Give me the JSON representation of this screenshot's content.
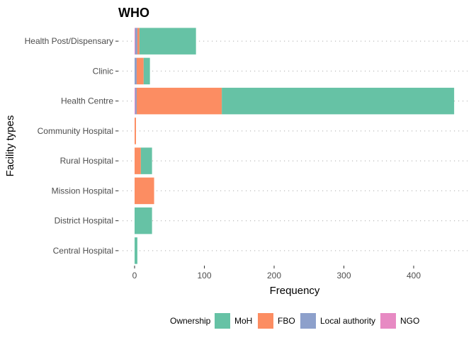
{
  "chart_data": {
    "type": "bar",
    "orientation": "horizontal",
    "stacked": true,
    "title": "WHO",
    "xlabel": "Frequency",
    "ylabel": "Facility types",
    "xlim": [
      0,
      460
    ],
    "xticks": [
      0,
      100,
      200,
      300,
      400
    ],
    "categories": [
      "Health Post/Dispensary",
      "Clinic",
      "Health Centre",
      "Community Hospital",
      "Rural Hospital",
      "Mission Hospital",
      "District Hospital",
      "Central Hospital"
    ],
    "series": [
      {
        "name": "NGO",
        "color": "#E78AC3",
        "values": [
          1,
          0,
          1,
          0,
          0,
          0,
          0,
          0
        ]
      },
      {
        "name": "Local authority",
        "color": "#8DA0CB",
        "values": [
          3,
          3,
          2,
          0,
          0,
          0,
          0,
          0
        ]
      },
      {
        "name": "FBO",
        "color": "#FC8D62",
        "values": [
          3,
          10,
          122,
          2,
          9,
          28,
          0,
          0
        ]
      },
      {
        "name": "MoH",
        "color": "#66C2A5",
        "values": [
          81,
          9,
          333,
          0,
          16,
          0,
          25,
          4
        ]
      }
    ],
    "legend": {
      "title": "Ownership",
      "position": "bottom",
      "order": [
        "MoH",
        "FBO",
        "Local authority",
        "NGO"
      ]
    },
    "grid": {
      "major_y": "dotted",
      "major_x": false
    }
  }
}
